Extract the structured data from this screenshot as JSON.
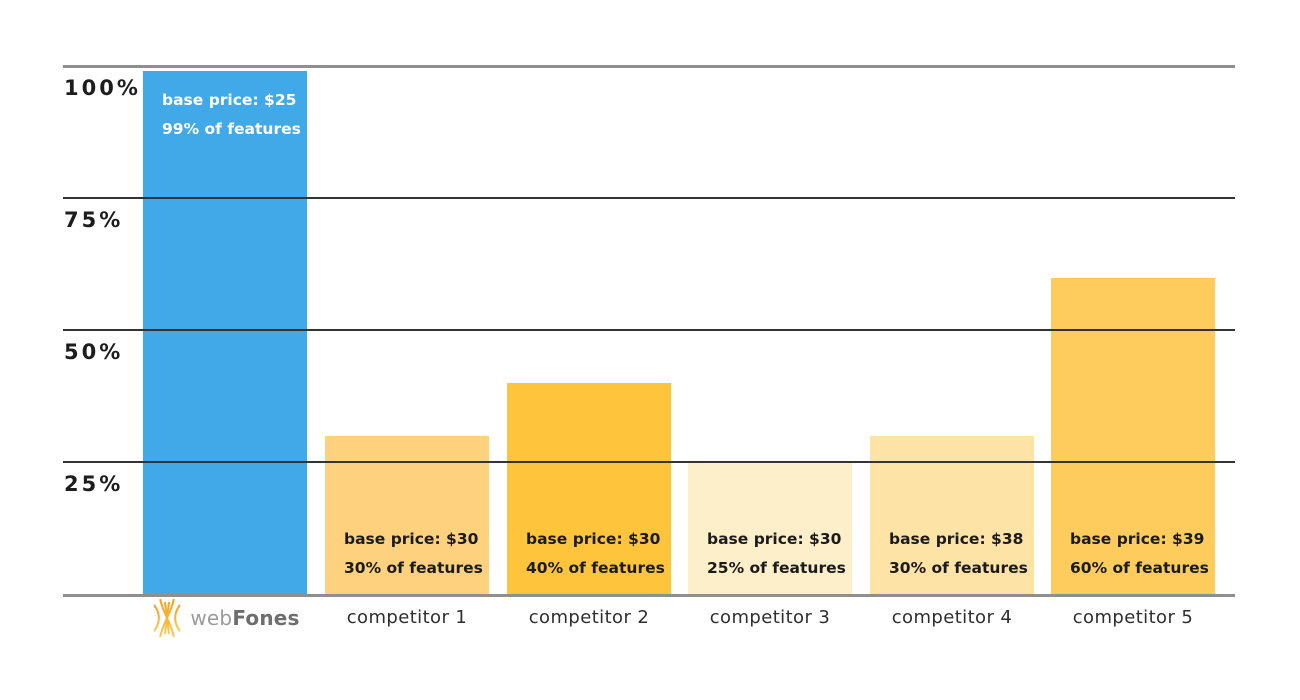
{
  "chart_data": {
    "type": "bar",
    "title": "",
    "categories": [
      "webFones",
      "competitor 1",
      "competitor 2",
      "competitor 3",
      "competitor 4",
      "competitor 5"
    ],
    "values": [
      99,
      30,
      40,
      25,
      30,
      60
    ],
    "value_unit": "% of features",
    "ylabel": "",
    "xlabel": "",
    "ylim": [
      0,
      100
    ],
    "y_ticks": [
      "100%",
      "75%",
      "50%",
      "25%"
    ],
    "grid": "horizontal",
    "legend": "none",
    "annotations": [
      "base price: $25 | 99% of features",
      "base price: $30 | 30% of features",
      "base price: $30 | 40% of features",
      "base price: $30 | 25% of features",
      "base price: $38 | 30% of features",
      "base price: $39 | 60% of features"
    ],
    "base_prices": [
      "$25",
      "$30",
      "$30",
      "$30",
      "$38",
      "$39"
    ]
  },
  "y_axis": {
    "ticks": [
      "100%",
      "75%",
      "50%",
      "25%"
    ]
  },
  "bars": [
    {
      "label": "webFones",
      "line1": "base price: $25",
      "line2": "99% of features",
      "value": 99,
      "color": "#41A9E8",
      "text_color": "#FFFFFF",
      "note_position": "top"
    },
    {
      "label": "competitor 1",
      "line1": "base price: $30",
      "line2": "30% of features",
      "value": 30,
      "color": "#FDD17E",
      "text_color": "#1B1B1B",
      "note_position": "bottom"
    },
    {
      "label": "competitor 2",
      "line1": "base price: $30",
      "line2": "40% of features",
      "value": 40,
      "color": "#FEC53C",
      "text_color": "#1B1B1B",
      "note_position": "bottom"
    },
    {
      "label": "competitor 3",
      "line1": "base price: $30",
      "line2": "25% of features",
      "value": 25,
      "color": "#FEEFCB",
      "text_color": "#1B1B1B",
      "note_position": "bottom"
    },
    {
      "label": "competitor 4",
      "line1": "base price: $38",
      "line2": "30% of features",
      "value": 30,
      "color": "#FEE3A6",
      "text_color": "#1B1B1B",
      "note_position": "bottom"
    },
    {
      "label": "competitor 5",
      "line1": "base price: $39",
      "line2": "60% of features",
      "value": 60,
      "color": "#FECB5D",
      "text_color": "#1B1B1B",
      "note_position": "bottom"
    }
  ],
  "logo": {
    "name": "webFones",
    "text_light": "web",
    "text_bold": "Fones",
    "icon_color_start": "#F6A21E",
    "icon_color_end": "#FDC94F"
  },
  "colors": {
    "background": "#FFFFFF",
    "grid_major": "#8F8F8F",
    "grid_minor": "#343434",
    "axis_label": "#1D1D1D",
    "category_label": "#2E2E2E",
    "brand_blue": "#41A9E8"
  }
}
